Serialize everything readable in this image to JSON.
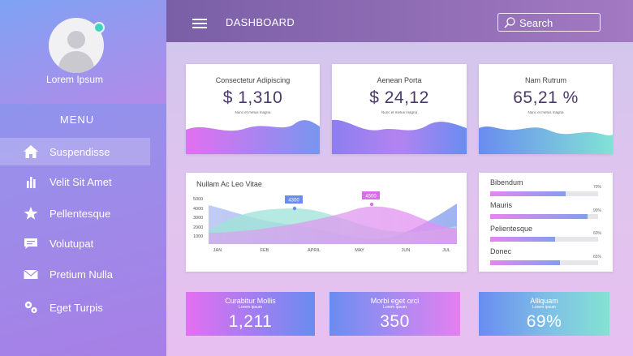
{
  "sidebar": {
    "username": "Lorem Ipsum",
    "menu_title": "MENU",
    "items": [
      {
        "label": "Suspendisse",
        "icon": "home-icon",
        "active": true
      },
      {
        "label": "Velit Sit Amet",
        "icon": "bar-chart-icon",
        "active": false
      },
      {
        "label": "Pellentesque",
        "icon": "star-icon",
        "active": false
      },
      {
        "label": "Volutupat",
        "icon": "chat-icon",
        "active": false
      },
      {
        "label": "Pretium Nulla",
        "icon": "mail-icon",
        "active": false
      },
      {
        "label": "Eget Turpis",
        "icon": "gears-icon",
        "active": false
      }
    ]
  },
  "header": {
    "title": "DASHBOARD",
    "search_label": "Search"
  },
  "stats": [
    {
      "label": "Consectetur Adipiscing",
      "value": "$ 1,310",
      "sub": "Nunc et metus magna"
    },
    {
      "label": "Aenean Porta",
      "value": "$ 24,12",
      "sub": "Nunc et metus magna"
    },
    {
      "label": "Nam Rutrum",
      "value": "65,21 %",
      "sub": "Nunc et metus magna"
    }
  ],
  "area_chart": {
    "title": "Nullam Ac Leo Vitae",
    "months": [
      "JAN",
      "FEB",
      "APRIL",
      "MAY",
      "JUN",
      "JUL"
    ],
    "y_ticks": [
      "5000",
      "4000",
      "3000",
      "2000",
      "1000"
    ],
    "callouts": [
      "4300",
      "4500"
    ]
  },
  "progress": [
    {
      "label": "Bibendum",
      "pct_label": "70%",
      "value": 0.7
    },
    {
      "label": "Mauris",
      "pct_label": "90%",
      "value": 0.9
    },
    {
      "label": "Pelientesque",
      "pct_label": "60%",
      "value": 0.6
    },
    {
      "label": "Donec",
      "pct_label": "65%",
      "value": 0.65
    }
  ],
  "bottom_cards": [
    {
      "title": "Curabitur Mollis",
      "sub": "Lorem ipsum",
      "value": "1,211"
    },
    {
      "title": "Morbi eget orci",
      "sub": "Lorem ipsum",
      "value": "350"
    },
    {
      "title": "Alliquam",
      "sub": "Lorem ipsum",
      "value": "69%"
    }
  ],
  "colors": {
    "accent_pink": "#e36ff0",
    "accent_blue": "#6a8cf0",
    "accent_teal": "#7fe0d4",
    "header_purple": "#7a5fa6"
  }
}
